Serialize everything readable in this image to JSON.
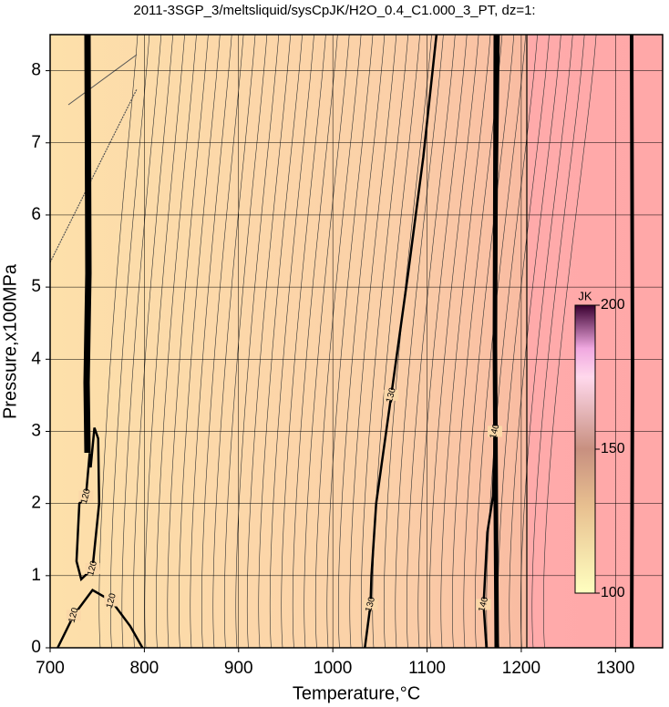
{
  "chart_data": {
    "type": "contour",
    "title": "2011-3SGP_3/meltsliquid/sysCpJK/H2O_0.4_C1.000_3_PT, dz=1:",
    "x_label": "Temperature,°C",
    "y_label": "Pressure,x100MPa",
    "xlim": [
      700,
      1350
    ],
    "ylim": [
      0,
      8.5
    ],
    "xticks": [
      700,
      800,
      900,
      1000,
      1100,
      1200,
      1300
    ],
    "yticks": [
      0,
      1,
      2,
      3,
      4,
      5,
      6,
      7,
      8
    ],
    "grid": true,
    "contours": [
      {
        "level": 120,
        "x": [
          708,
          725,
          745,
          765,
          785,
          798
        ],
        "y": [
          0,
          0.45,
          0.8,
          0.65,
          0.3,
          0
        ]
      },
      {
        "level": 120,
        "x": [
          742,
          738,
          731,
          728,
          733,
          745,
          752,
          751,
          747,
          743
        ],
        "y": [
          2.7,
          2.1,
          2.0,
          1.2,
          0.95,
          1.1,
          2.0,
          2.9,
          3.05,
          2.5
        ]
      },
      {
        "level": 130,
        "x": [
          1034,
          1040,
          1041,
          1046,
          1062,
          1080,
          1096,
          1110
        ],
        "y": [
          0,
          0.6,
          1.0,
          2.0,
          3.5,
          5.2,
          6.8,
          8.5
        ]
      },
      {
        "level": 140,
        "x": [
          1163,
          1160,
          1164,
          1170,
          1172,
          1173,
          1174,
          1176
        ],
        "y": [
          0,
          0.6,
          1.6,
          2.1,
          3.0,
          4.5,
          6.5,
          8.5
        ]
      }
    ],
    "colorbar": {
      "label": "JK",
      "lim": [
        100,
        200
      ],
      "ticks": [
        100,
        150,
        200
      ]
    }
  }
}
